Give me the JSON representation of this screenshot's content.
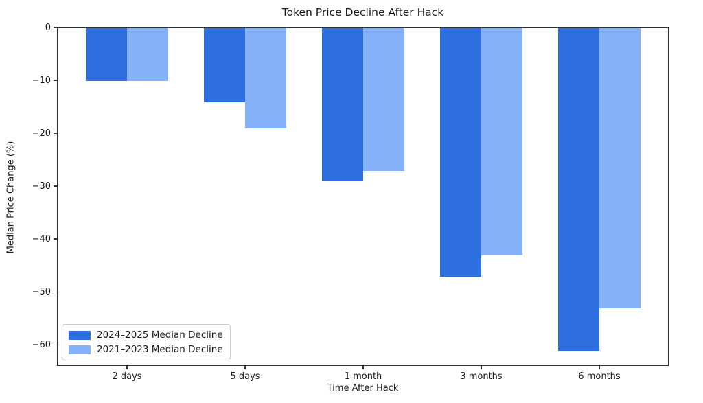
{
  "chart_data": {
    "type": "bar",
    "title": "Token Price Decline After Hack",
    "xlabel": "Time After Hack",
    "ylabel": "Median Price Change (%)",
    "categories": [
      "2 days",
      "5 days",
      "1 month",
      "3 months",
      "6 months"
    ],
    "series": [
      {
        "name": "2024–2025 Median Decline",
        "color": "#2e6fe0",
        "values": [
          -10,
          -14,
          -29,
          -47,
          -61
        ]
      },
      {
        "name": "2021–2023 Median Decline",
        "color": "#84b1f8",
        "values": [
          -10,
          -19,
          -27,
          -43,
          -53
        ]
      }
    ],
    "ylim": [
      -64,
      0
    ],
    "yticks": [
      0,
      -10,
      -20,
      -30,
      -40,
      -50,
      -60
    ],
    "ytick_labels": [
      "0",
      "−10",
      "−20",
      "−30",
      "−40",
      "−50",
      "−60"
    ],
    "grid": false,
    "legend_position": "lower left",
    "axis_color": "#2a2f38",
    "text_color": "#1a1a1a"
  }
}
